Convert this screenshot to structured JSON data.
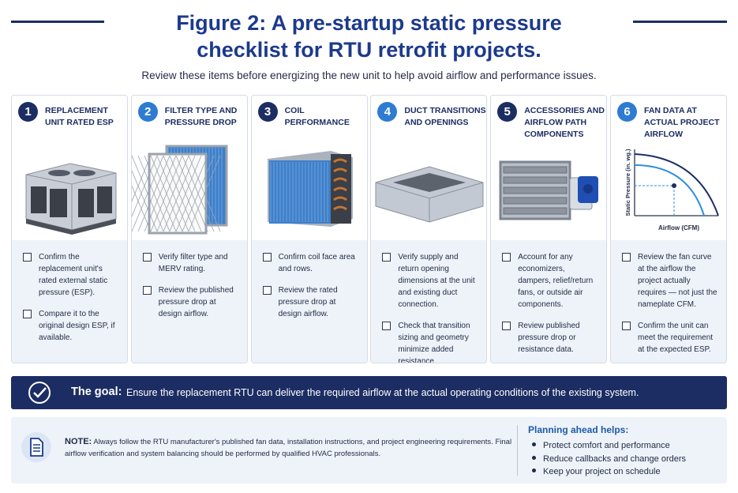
{
  "header": {
    "title": "Figure 2: A pre-startup static pressure checklist for RTU retrofit projects.",
    "subtitle": "Review these items before energizing the new unit to help avoid airflow and performance issues."
  },
  "cards": [
    {
      "number": "1",
      "title": "REPLACEMENT UNIT RATED ESP",
      "items": [
        "Confirm the replacement unit's rated external static pressure (ESP).",
        "Compare it to the original design ESP, if available."
      ]
    },
    {
      "number": "2",
      "title": "FILTER TYPE AND PRESSURE DROP",
      "items": [
        "Verify filter type and MERV rating.",
        "Review the published pressure drop at design airflow."
      ]
    },
    {
      "number": "3",
      "title": "COIL PERFORMANCE",
      "items": [
        "Confirm coil face area and rows.",
        "Review the rated pressure drop at design airflow."
      ]
    },
    {
      "number": "4",
      "title": "DUCT TRANSITIONS AND OPENINGS",
      "items": [
        "Verify supply and return opening dimensions at the unit and existing duct connection.",
        "Check that transition sizing and geometry minimize added resistance."
      ]
    },
    {
      "number": "5",
      "title": "ACCESSORIES AND AIRFLOW PATH COMPONENTS",
      "items": [
        "Account for any economizers, dampers, relief/return fans, or outside air components.",
        "Review published pressure drop or resistance data."
      ]
    },
    {
      "number": "6",
      "title": "FAN DATA AT ACTUAL PROJECT AIRFLOW",
      "fan_chart": {
        "y_label": "Static Pressure (in. wg.)",
        "x_label": "Airflow (CFM)"
      },
      "items": [
        "Review the fan curve at the airflow the project actually requires — not just the nameplate CFM.",
        "Confirm the unit can meet the requirement at the expected ESP."
      ]
    }
  ],
  "goal": {
    "label": "The goal:",
    "text": "Ensure the replacement RTU can deliver the required airflow at the actual operating conditions of the existing system."
  },
  "note": {
    "label": "NOTE:",
    "text": "Always follow the RTU manufacturer's published fan data, installation instructions, and project engineering requirements. Final airflow verification and system balancing should be performed by qualified HVAC professionals."
  },
  "planning": {
    "heading": "Planning ahead helps:",
    "items": [
      "Protect comfort and performance",
      "Reduce callbacks and change orders",
      "Keep your project on schedule"
    ]
  }
}
